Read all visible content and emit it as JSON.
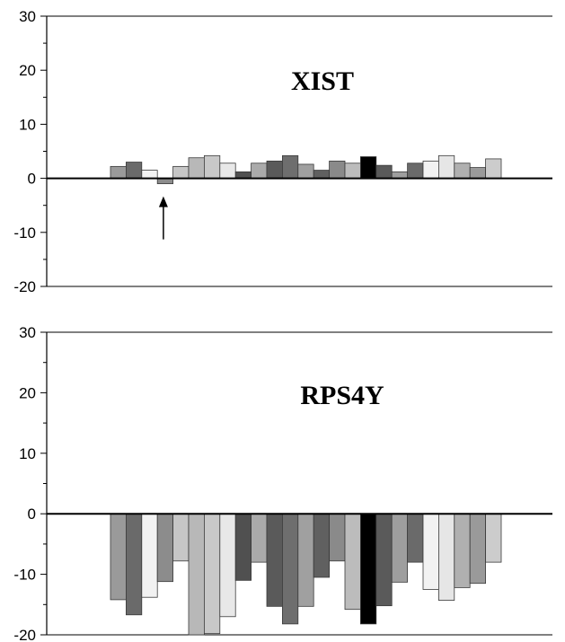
{
  "chart_data": [
    {
      "type": "bar",
      "title": "XIST",
      "ylim": [
        -20,
        30
      ],
      "yticks": [
        "30",
        "20",
        "10",
        "0",
        "-10",
        "-20"
      ],
      "annotation": "arrow",
      "values": [
        2.2,
        3.0,
        1.5,
        -1.0,
        2.2,
        3.8,
        4.2,
        2.8,
        1.2,
        2.8,
        3.2,
        4.2,
        2.6,
        1.5,
        3.2,
        2.8,
        4.0,
        2.4,
        1.2,
        2.8,
        3.2,
        4.2,
        2.8,
        2.0,
        3.6
      ],
      "colors": [
        "#9a9a9a",
        "#6a6a6a",
        "#f2f2f2",
        "#8c8c8c",
        "#c6c6c6",
        "#b8b8b8",
        "#c8c8c8",
        "#e8e8e8",
        "#505050",
        "#aaaaaa",
        "#5a5a5a",
        "#6e6e6e",
        "#a0a0a0",
        "#606060",
        "#8a8a8a",
        "#bcbcbc",
        "#000000",
        "#5a5a5a",
        "#9e9e9e",
        "#6a6a6a",
        "#f2f2f2",
        "#e6e6e6",
        "#b0b0b0",
        "#9a9a9a",
        "#cccccc"
      ]
    },
    {
      "type": "bar",
      "title": "RPS4Y",
      "ylim": [
        -20,
        30
      ],
      "yticks": [
        "30",
        "20",
        "10",
        "0",
        "-10",
        "-20"
      ],
      "values": [
        -14.2,
        -16.7,
        -13.8,
        -11.2,
        -7.8,
        -20.0,
        -19.8,
        -17.0,
        -11.0,
        -8.0,
        -15.3,
        -18.2,
        -15.3,
        -10.5,
        -7.8,
        -15.8,
        -18.2,
        -15.2,
        -11.3,
        -8.0,
        -12.5,
        -14.3,
        -12.2,
        -11.5,
        -8.0
      ],
      "colors": [
        "#9a9a9a",
        "#6a6a6a",
        "#f2f2f2",
        "#8c8c8c",
        "#c6c6c6",
        "#b8b8b8",
        "#c8c8c8",
        "#e8e8e8",
        "#505050",
        "#aaaaaa",
        "#5a5a5a",
        "#6e6e6e",
        "#a0a0a0",
        "#606060",
        "#8a8a8a",
        "#bcbcbc",
        "#000000",
        "#5a5a5a",
        "#9e9e9e",
        "#6a6a6a",
        "#f2f2f2",
        "#e6e6e6",
        "#b0b0b0",
        "#9a9a9a",
        "#cccccc"
      ]
    }
  ]
}
